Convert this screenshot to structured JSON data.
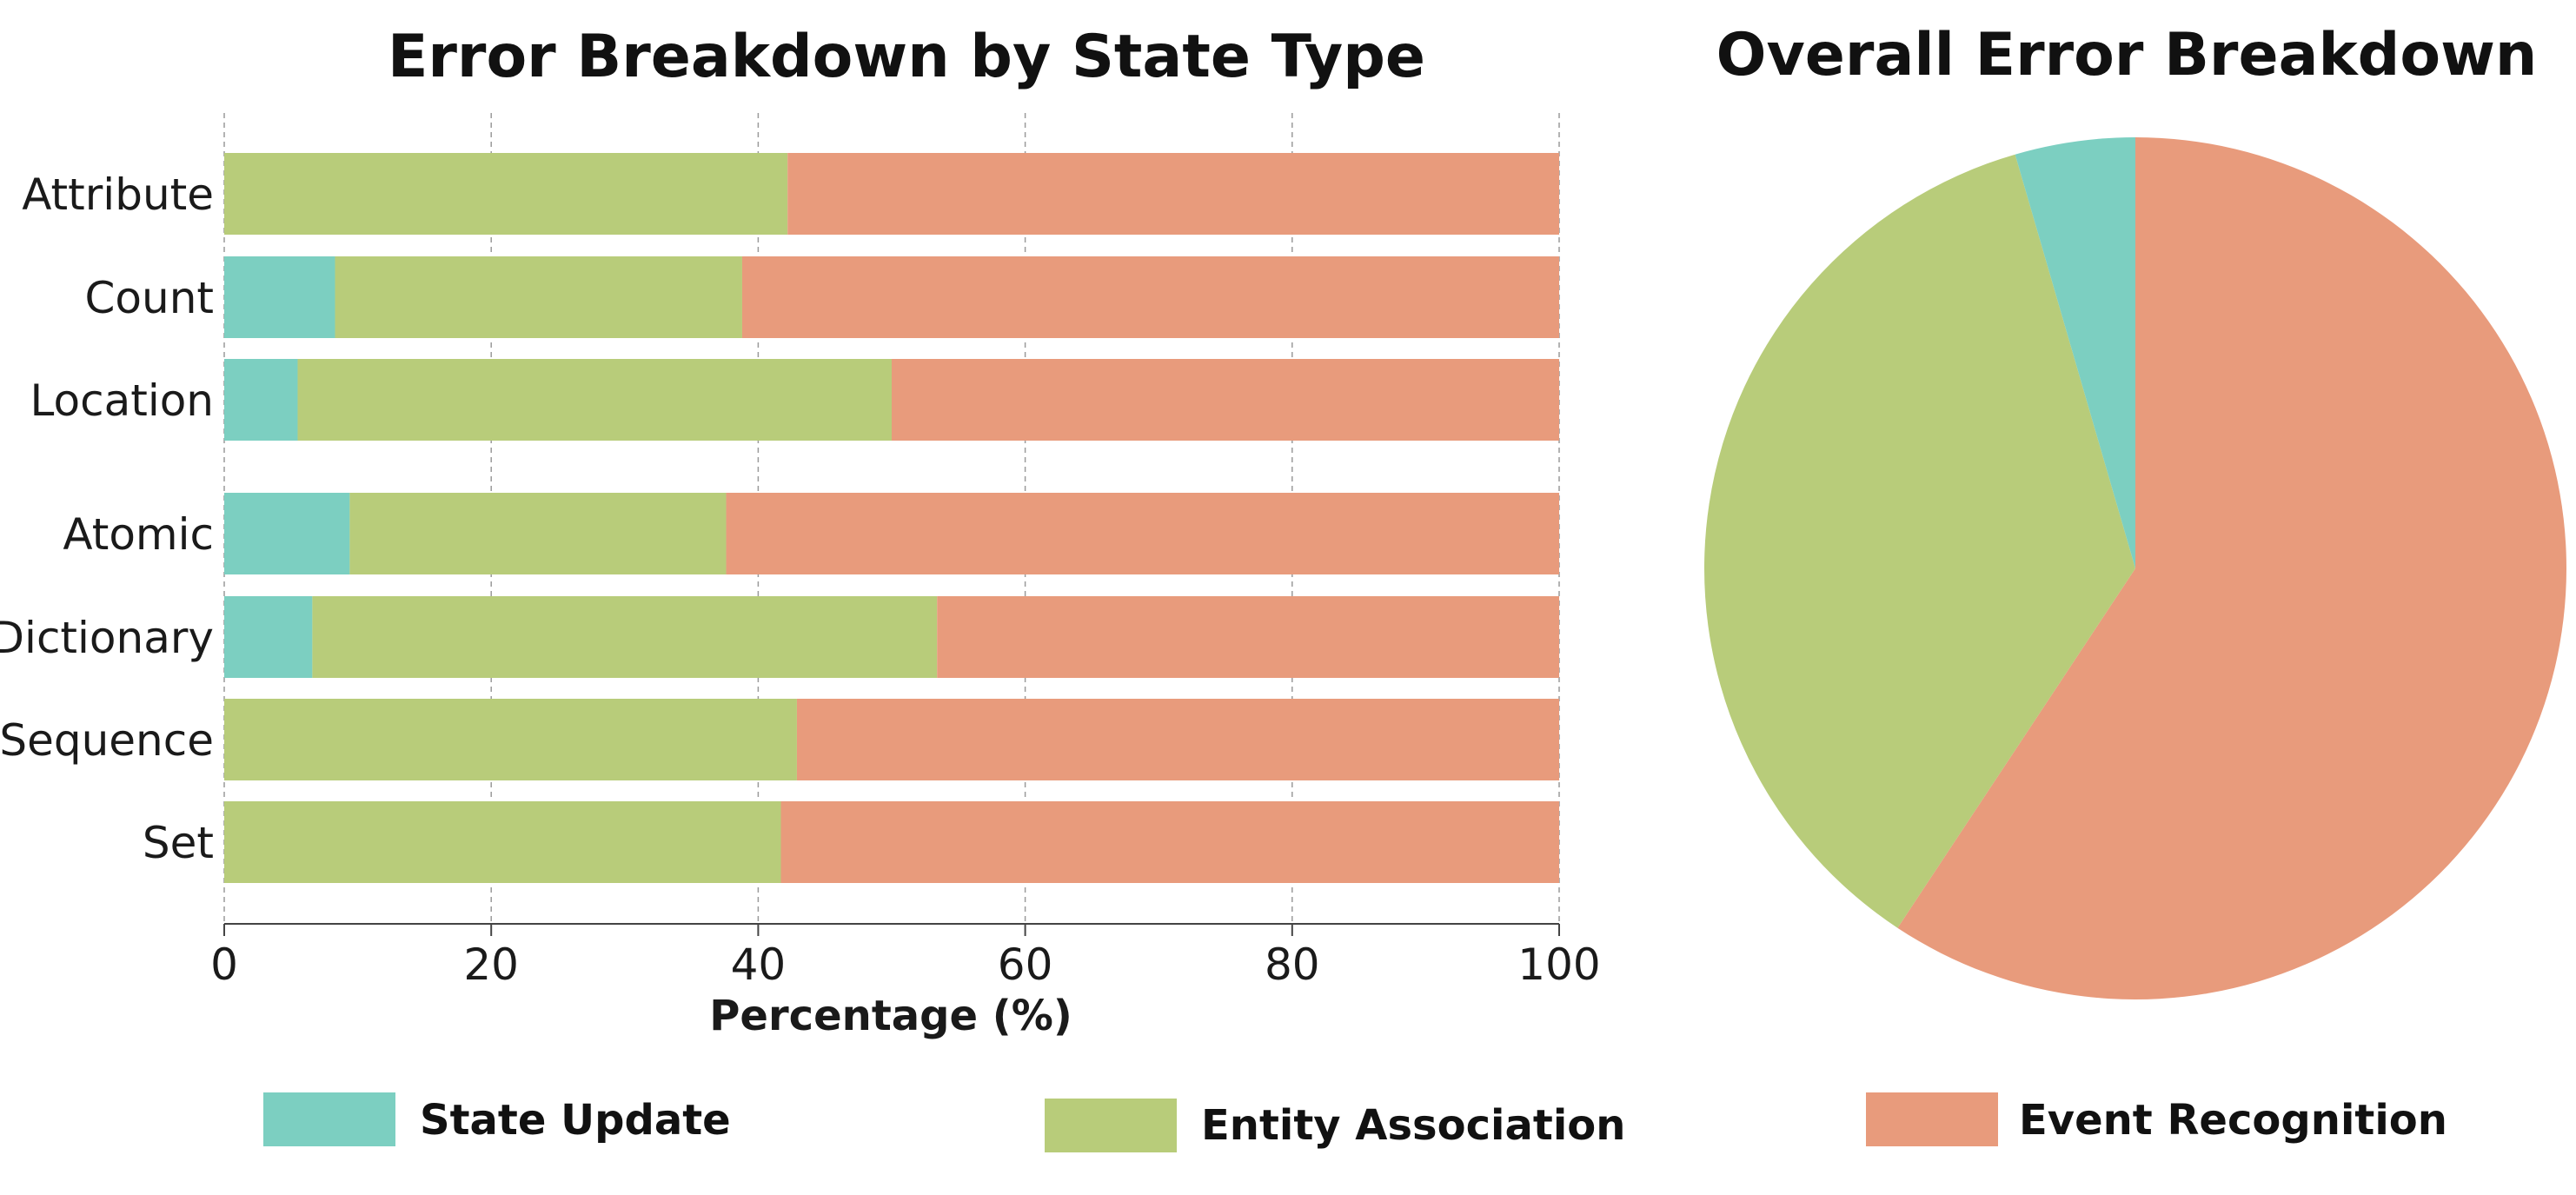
{
  "chart_data": [
    {
      "type": "bar",
      "orientation": "horizontal",
      "stacked": true,
      "title": "Error Breakdown by State Type",
      "xlabel": "Percentage (%)",
      "ylabel": "",
      "xlim": [
        0,
        100
      ],
      "xticks": [
        "0",
        "20",
        "40",
        "60",
        "80",
        "100"
      ],
      "grid": "vertical dashed",
      "categories": [
        "Attribute",
        "Count",
        "Location",
        "Atomic",
        "Dictionary",
        "Sequence",
        "Set"
      ],
      "group_break_after": "Location",
      "series": [
        {
          "name": "State Update",
          "color": "#7ccfc1",
          "values": [
            0,
            8.3,
            5.5,
            9.4,
            6.6,
            0,
            0
          ]
        },
        {
          "name": "Entity Association",
          "color": "#b8cc7a",
          "values": [
            42.2,
            30.5,
            44.5,
            28.2,
            46.8,
            42.9,
            41.7
          ]
        },
        {
          "name": "Event Recognition",
          "color": "#e89b7c",
          "values": [
            57.8,
            61.2,
            50.0,
            62.4,
            46.6,
            57.1,
            58.3
          ]
        }
      ]
    },
    {
      "type": "pie",
      "title": "Overall Error Breakdown",
      "start": "12 o'clock, clockwise",
      "slices": [
        {
          "name": "Event Recognition",
          "color": "#e89b7c",
          "value": 59.3
        },
        {
          "name": "Entity Association",
          "color": "#b8cc7a",
          "value": 36.2
        },
        {
          "name": "State Update",
          "color": "#7ccfc1",
          "value": 4.5
        }
      ]
    }
  ],
  "legend": {
    "placement": "bottom",
    "items": [
      {
        "label": "State Update",
        "color": "#7ccfc1"
      },
      {
        "label": "Entity Association",
        "color": "#b8cc7a"
      },
      {
        "label": "Event Recognition",
        "color": "#e89b7c"
      }
    ]
  }
}
